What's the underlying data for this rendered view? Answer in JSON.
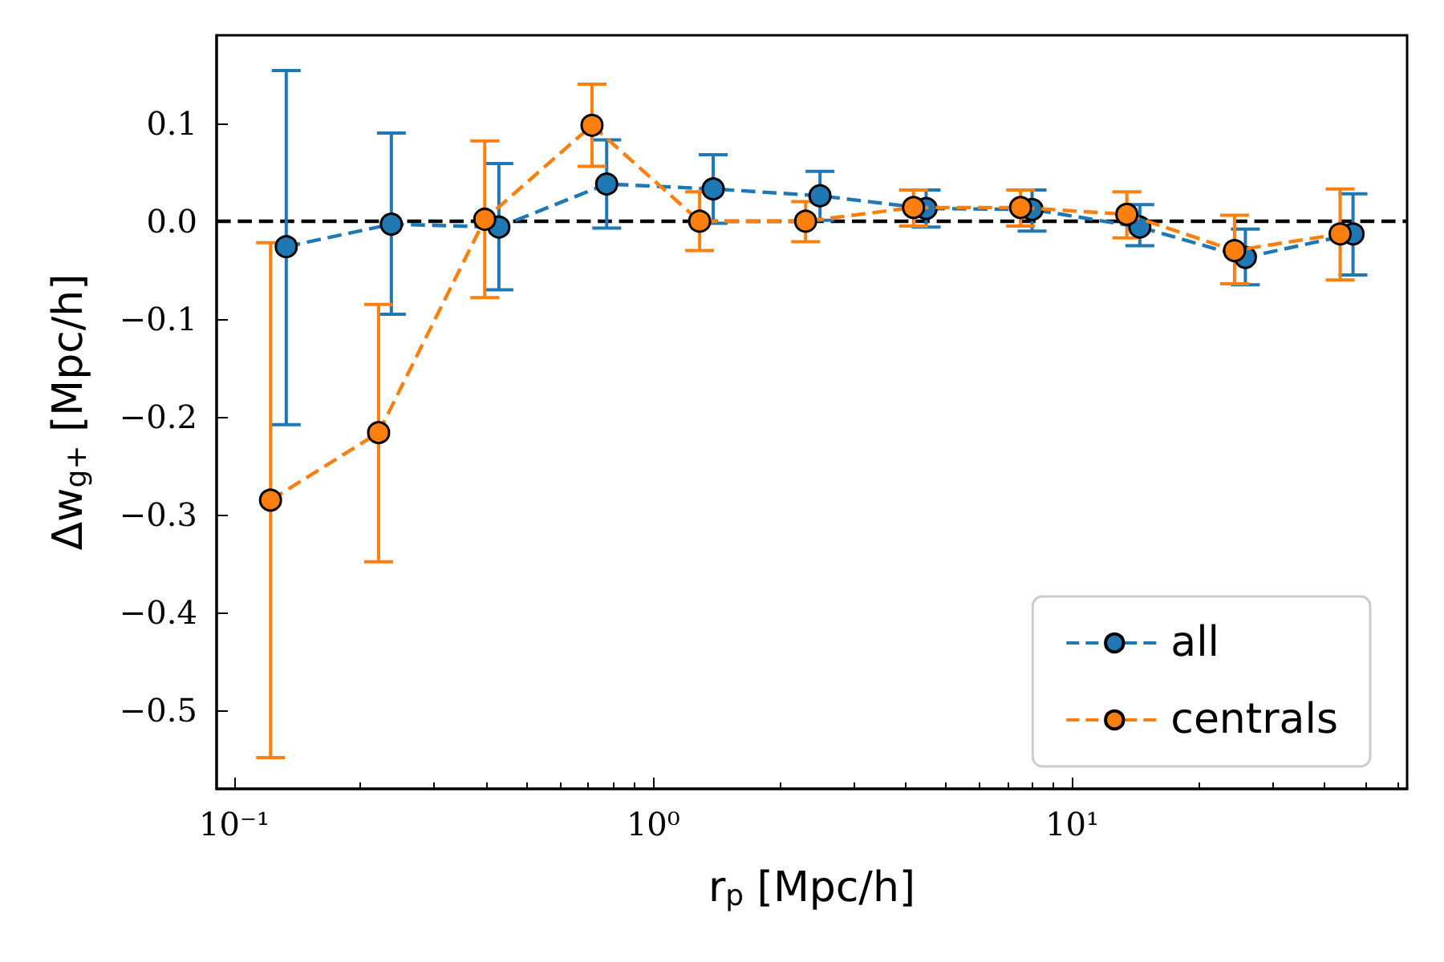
{
  "chart_data": {
    "type": "line",
    "xlabel": "r$_{p}$ [Mpc/h]",
    "ylabel": "Δw$_{g+}$ [Mpc/h]",
    "log": "x",
    "xlim": [
      0.0907,
      63
    ],
    "xticks": [
      {
        "value": 0.1,
        "label": "10⁻¹"
      },
      {
        "value": 1,
        "label": "10⁰"
      },
      {
        "value": 10,
        "label": "10¹"
      }
    ],
    "ylim": [
      -0.58,
      0.19
    ],
    "yticks": [
      {
        "value": -0.5,
        "label": "−0.5"
      },
      {
        "value": -0.4,
        "label": "−0.4"
      },
      {
        "value": -0.3,
        "label": "−0.3"
      },
      {
        "value": -0.2,
        "label": "−0.2"
      },
      {
        "value": -0.1,
        "label": "−0.1"
      },
      {
        "value": 0,
        "label": "0.0"
      },
      0.1
    ],
    "series": [
      {
        "name": "all",
        "color": "#1f77b4",
        "x": [
          0.133,
          0.237,
          0.428,
          0.774,
          1.39,
          2.5,
          4.48,
          8.02,
          14.5,
          25.9,
          46.8
        ],
        "values": [
          -0.026,
          -0.003,
          -0.006,
          0.038,
          0.033,
          0.026,
          0.013,
          0.012,
          -0.006,
          -0.037,
          -0.013
        ],
        "errors": [
          [
            -0.208,
            0.154
          ],
          [
            -0.095,
            0.09
          ],
          [
            -0.07,
            0.059
          ],
          [
            -0.007,
            0.083
          ],
          [
            -0.002,
            0.068
          ],
          [
            0.001,
            0.051
          ],
          [
            -0.006,
            0.032
          ],
          [
            -0.01,
            0.032
          ],
          [
            -0.025,
            0.017
          ],
          [
            -0.065,
            -0.008
          ],
          [
            -0.055,
            0.028
          ]
        ]
      },
      {
        "name": "centrals",
        "color": "#ff7f0e",
        "x": [
          0.122,
          0.221,
          0.396,
          0.714,
          1.29,
          2.31,
          4.18,
          7.53,
          13.5,
          24.4,
          43.6
        ],
        "values": [
          -0.285,
          -0.216,
          0.002,
          0.098,
          0.0,
          0.0,
          0.014,
          0.014,
          0.007,
          -0.03,
          -0.013
        ],
        "errors": [
          [
            -0.548,
            -0.022
          ],
          [
            -0.348,
            -0.085
          ],
          [
            -0.078,
            0.082
          ],
          [
            0.056,
            0.14
          ],
          [
            -0.03,
            0.03
          ],
          [
            -0.021,
            0.02
          ],
          [
            -0.005,
            0.032
          ],
          [
            -0.005,
            0.032
          ],
          [
            -0.017,
            0.03
          ],
          [
            -0.064,
            0.006
          ],
          [
            -0.06,
            0.033
          ]
        ]
      }
    ],
    "ref_lines": [
      {
        "axis": "y",
        "value": 0,
        "color": "#000000",
        "line_style": "dashed"
      }
    ],
    "legend": "bottom right",
    "marker": "circle",
    "line_style": "dashed",
    "grid": false
  }
}
